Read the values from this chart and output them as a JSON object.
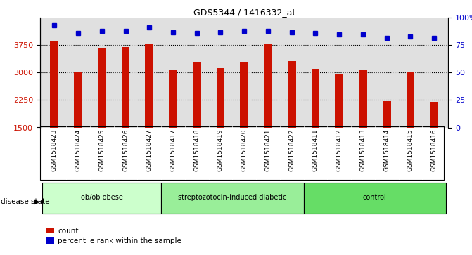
{
  "title": "GDS5344 / 1416332_at",
  "samples": [
    "GSM1518423",
    "GSM1518424",
    "GSM1518425",
    "GSM1518426",
    "GSM1518427",
    "GSM1518417",
    "GSM1518418",
    "GSM1518419",
    "GSM1518420",
    "GSM1518421",
    "GSM1518422",
    "GSM1518411",
    "GSM1518412",
    "GSM1518413",
    "GSM1518414",
    "GSM1518415",
    "GSM1518416"
  ],
  "counts": [
    3870,
    3020,
    3660,
    3700,
    3790,
    3060,
    3290,
    3130,
    3290,
    3780,
    3320,
    3110,
    2960,
    3060,
    2230,
    3010,
    2200
  ],
  "percentiles": [
    93,
    86,
    88,
    88,
    91,
    87,
    86,
    87,
    88,
    88,
    87,
    86,
    85,
    85,
    82,
    83,
    82
  ],
  "groups": [
    {
      "label": "ob/ob obese",
      "start": 0,
      "end": 5
    },
    {
      "label": "streptozotocin-induced diabetic",
      "start": 5,
      "end": 11
    },
    {
      "label": "control",
      "start": 11,
      "end": 17
    }
  ],
  "group_colors": [
    "#ccffcc",
    "#99ee99",
    "#66dd66"
  ],
  "bar_color": "#cc1100",
  "dot_color": "#0000cc",
  "ylim_left": [
    1500,
    4500
  ],
  "ylim_right": [
    0,
    100
  ],
  "yticks_left": [
    1500,
    2250,
    3000,
    3750
  ],
  "yticks_right": [
    0,
    25,
    50,
    75,
    100
  ],
  "grid_values": [
    2250,
    3000,
    3750
  ],
  "background_plot": "#e0e0e0",
  "xtick_area_color": "#c8c8c8"
}
